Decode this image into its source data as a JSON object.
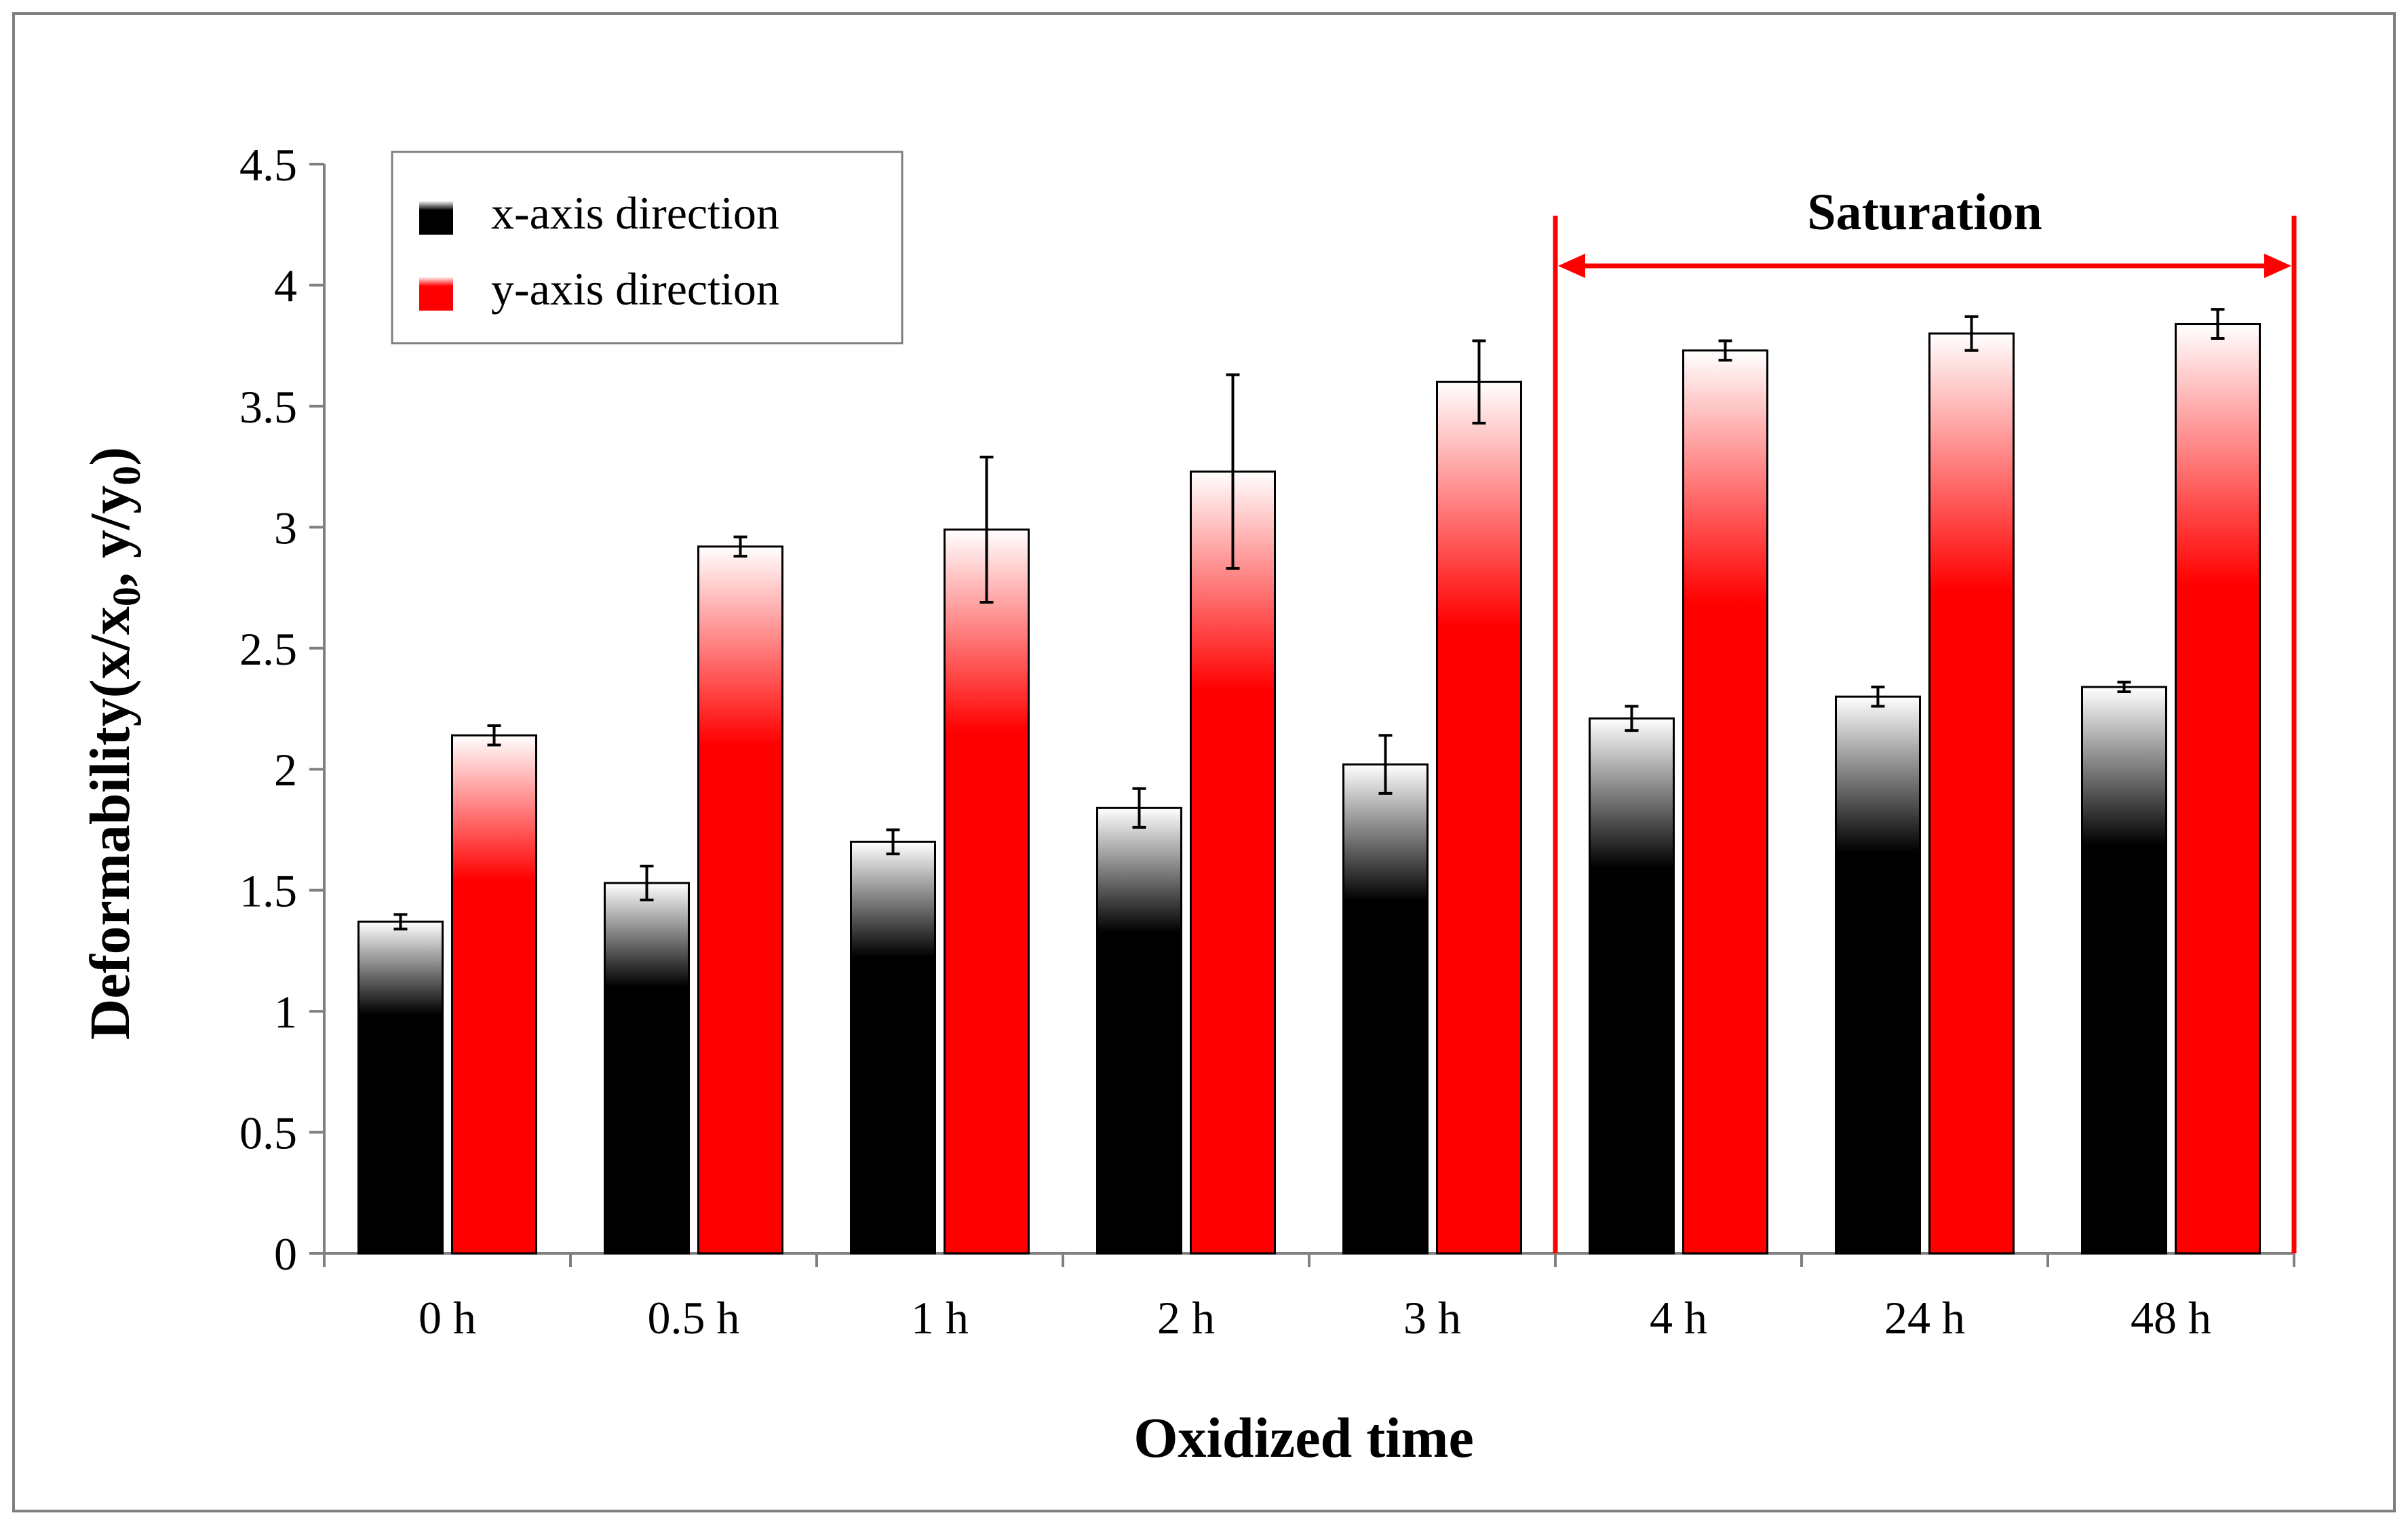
{
  "chart_data": {
    "type": "bar",
    "title": "",
    "xlabel": "Oxidized time",
    "ylabel_parts": [
      "Deformability(x/x",
      "0",
      ", y/y",
      "0",
      ")"
    ],
    "categories": [
      "0 h",
      "0.5 h",
      "1 h",
      "2 h",
      "3 h",
      "4 h",
      "24 h",
      "48 h"
    ],
    "ylim": [
      0,
      4.5
    ],
    "yticks": [
      "0",
      "0.5",
      "1",
      "1.5",
      "2",
      "2.5",
      "3",
      "3.5",
      "4",
      "4.5"
    ],
    "series": [
      {
        "name": "x-axis direction",
        "color": "#000000",
        "values": [
          1.37,
          1.53,
          1.7,
          1.84,
          2.02,
          2.21,
          2.3,
          2.34
        ],
        "errors": [
          0.03,
          0.07,
          0.05,
          0.08,
          0.12,
          0.05,
          0.04,
          0.02
        ]
      },
      {
        "name": "y-axis direction",
        "color": "#ff0000",
        "values": [
          2.14,
          2.92,
          2.99,
          3.23,
          3.6,
          3.73,
          3.8,
          3.84
        ],
        "errors": [
          0.04,
          0.04,
          0.3,
          0.4,
          0.17,
          0.04,
          0.07,
          0.06
        ]
      }
    ],
    "annotation": {
      "text": "Saturation",
      "from_category": "4 h",
      "to_category": "48 h",
      "color": "#ff0000"
    },
    "legend_position": "top-left"
  }
}
